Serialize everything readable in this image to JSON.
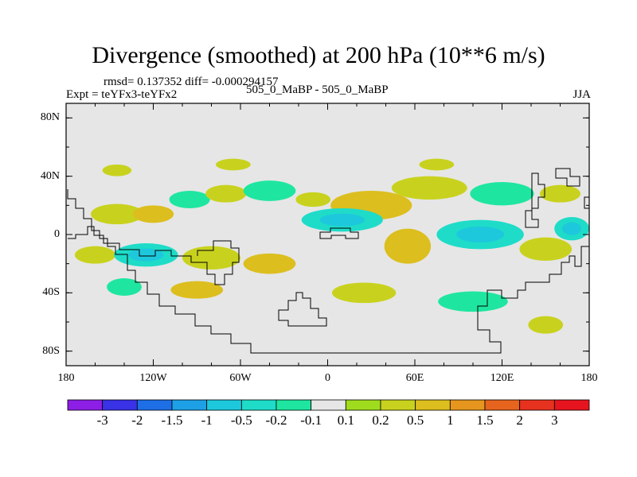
{
  "chart_data": {
    "type": "heatmap",
    "title": "Divergence (smoothed) at 200 hPa (10**6 m/s)",
    "stats": "rmsd= 0.137352 diff= -0.000294157",
    "left_string": "Expt = teYFx3-teYFx2",
    "center_string": "505_0_MaBP - 505_0_MaBP",
    "right_string": "JJA",
    "xlim": [
      -180,
      180
    ],
    "ylim": [
      -90,
      90
    ],
    "x_ticks": [
      {
        "value": -180,
        "label": "180"
      },
      {
        "value": -120,
        "label": "120W"
      },
      {
        "value": -60,
        "label": "60W"
      },
      {
        "value": 0,
        "label": "0"
      },
      {
        "value": 60,
        "label": "60E"
      },
      {
        "value": 120,
        "label": "120E"
      },
      {
        "value": 180,
        "label": "180"
      }
    ],
    "y_ticks": [
      {
        "value": 80,
        "label": "80N"
      },
      {
        "value": 40,
        "label": "40N"
      },
      {
        "value": 0,
        "label": "0"
      },
      {
        "value": -40,
        "label": "40S"
      },
      {
        "value": -80,
        "label": "80S"
      }
    ],
    "colorbar": {
      "levels": [
        "-3",
        "-2",
        "-1.5",
        "-1",
        "-0.5",
        "-0.2",
        "-0.1",
        "0.1",
        "0.2",
        "0.5",
        "1",
        "1.5",
        "2",
        "3"
      ],
      "colors": [
        "#8c1ee6",
        "#3a32e6",
        "#1e6ee6",
        "#1ea0e6",
        "#1ec8dc",
        "#1edcc8",
        "#1ee6a0",
        "#e6e6e6",
        "#a0dc1e",
        "#c8d21e",
        "#dcbe1e",
        "#e6961e",
        "#e6641e",
        "#e6321e",
        "#e6141e"
      ]
    },
    "anomaly_blobs": [
      {
        "lon": -145,
        "lat": 14,
        "rx": 18,
        "ry": 7,
        "value": 0.2
      },
      {
        "lon": -120,
        "lat": 14,
        "rx": 14,
        "ry": 6,
        "value": 0.5
      },
      {
        "lon": -95,
        "lat": 24,
        "rx": 14,
        "ry": 6,
        "value": -0.2
      },
      {
        "lon": -70,
        "lat": 28,
        "rx": 14,
        "ry": 6,
        "value": 0.2
      },
      {
        "lon": -40,
        "lat": 30,
        "rx": 18,
        "ry": 7,
        "value": -0.2
      },
      {
        "lon": -10,
        "lat": 24,
        "rx": 12,
        "ry": 5,
        "value": 0.2
      },
      {
        "lon": 30,
        "lat": 20,
        "rx": 28,
        "ry": 10,
        "value": 0.5
      },
      {
        "lon": 70,
        "lat": 32,
        "rx": 26,
        "ry": 8,
        "value": 0.2
      },
      {
        "lon": 120,
        "lat": 28,
        "rx": 22,
        "ry": 8,
        "value": -0.2
      },
      {
        "lon": 160,
        "lat": 28,
        "rx": 14,
        "ry": 6,
        "value": 0.2
      },
      {
        "lon": -160,
        "lat": -14,
        "rx": 14,
        "ry": 6,
        "value": 0.2
      },
      {
        "lon": -125,
        "lat": -14,
        "rx": 22,
        "ry": 8,
        "value": -0.5
      },
      {
        "lon": -80,
        "lat": -16,
        "rx": 20,
        "ry": 8,
        "value": 0.2
      },
      {
        "lon": -40,
        "lat": -20,
        "rx": 18,
        "ry": 7,
        "value": 0.5
      },
      {
        "lon": 10,
        "lat": 10,
        "rx": 28,
        "ry": 8,
        "value": -0.5
      },
      {
        "lon": 55,
        "lat": -8,
        "rx": 16,
        "ry": 12,
        "value": 0.5
      },
      {
        "lon": 105,
        "lat": 0,
        "rx": 30,
        "ry": 10,
        "value": -0.5
      },
      {
        "lon": 150,
        "lat": -10,
        "rx": 18,
        "ry": 8,
        "value": 0.2
      },
      {
        "lon": -140,
        "lat": -36,
        "rx": 12,
        "ry": 6,
        "value": -0.2
      },
      {
        "lon": -90,
        "lat": -38,
        "rx": 18,
        "ry": 6,
        "value": 0.5
      },
      {
        "lon": 25,
        "lat": -40,
        "rx": 22,
        "ry": 7,
        "value": 0.2
      },
      {
        "lon": 100,
        "lat": -46,
        "rx": 24,
        "ry": 7,
        "value": -0.2
      },
      {
        "lon": 150,
        "lat": -62,
        "rx": 12,
        "ry": 6,
        "value": 0.2
      },
      {
        "lon": -65,
        "lat": 48,
        "rx": 12,
        "ry": 4,
        "value": 0.2
      },
      {
        "lon": 75,
        "lat": 48,
        "rx": 12,
        "ry": 4,
        "value": 0.2
      },
      {
        "lon": -145,
        "lat": 44,
        "rx": 10,
        "ry": 4,
        "value": 0.2
      },
      {
        "lon": 168,
        "lat": 4,
        "rx": 12,
        "ry": 8,
        "value": -0.5
      }
    ]
  }
}
